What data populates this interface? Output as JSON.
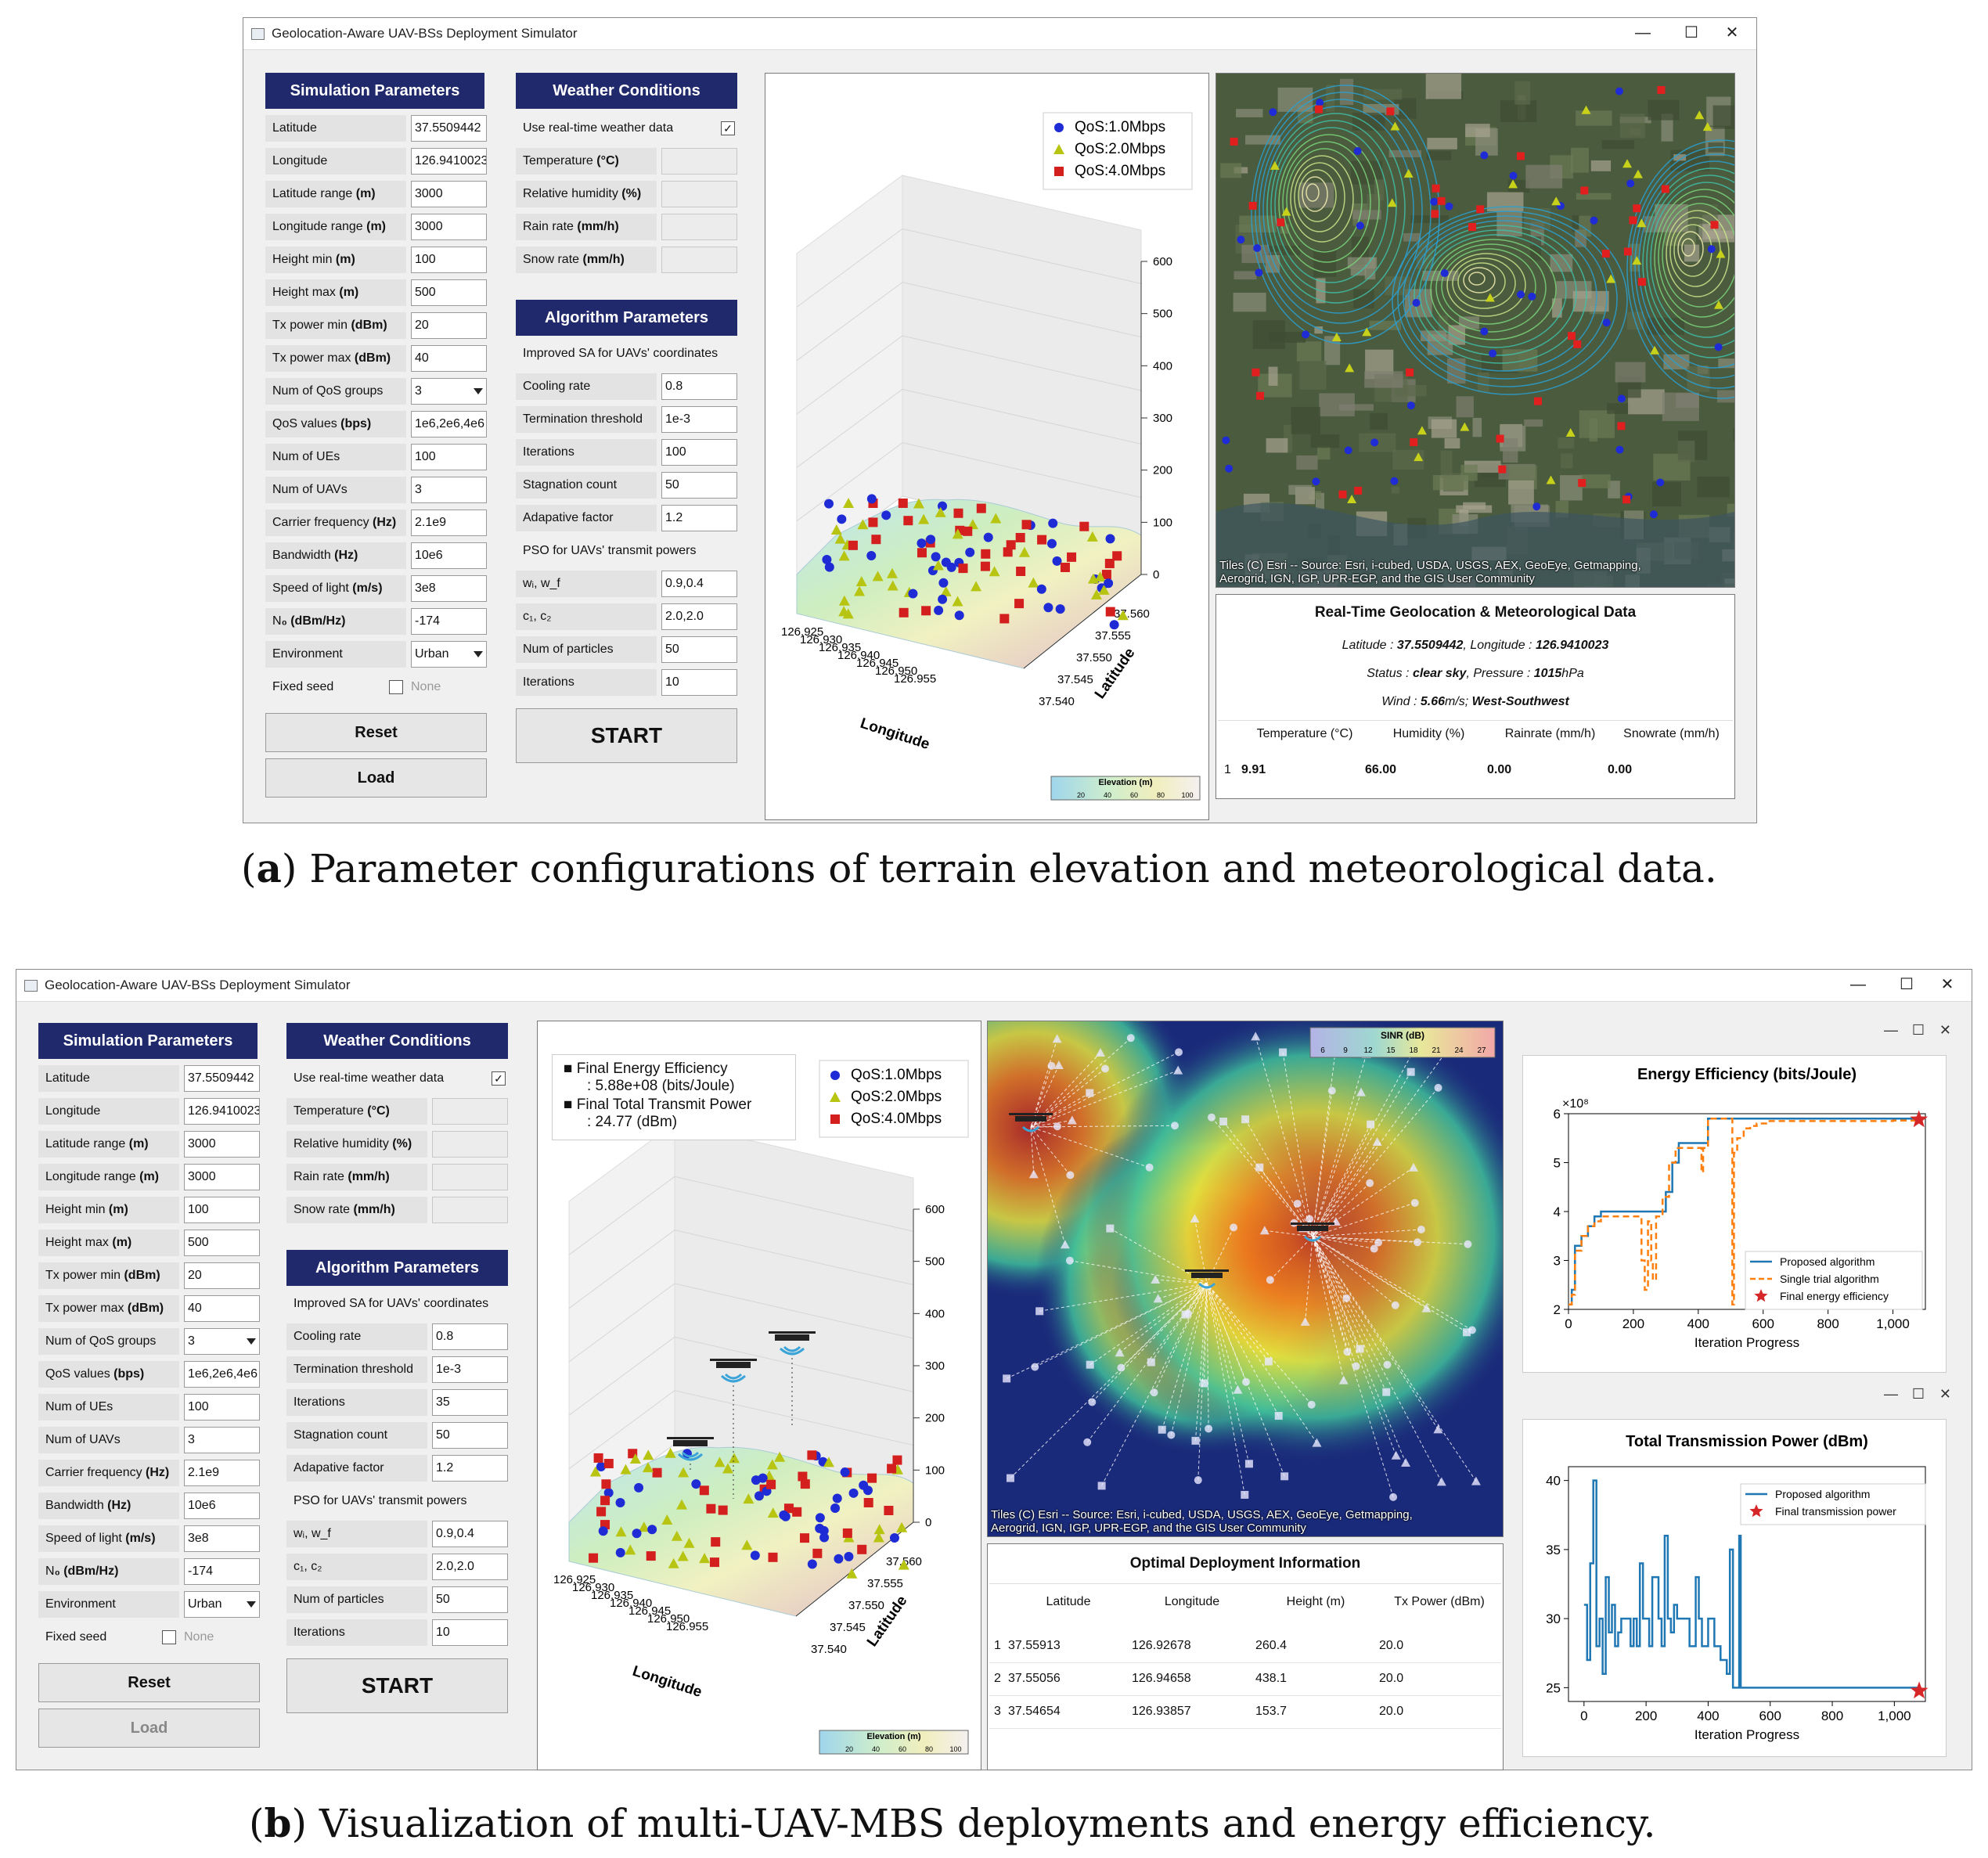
{
  "window_title": "Geolocation-Aware UAV-BSs Deployment Simulator",
  "sim_params": {
    "header": "Simulation Parameters",
    "rows": [
      {
        "label": "Latitude",
        "unit": "",
        "value": "37.5509442"
      },
      {
        "label": "Longitude",
        "unit": "",
        "value": "126.9410023"
      },
      {
        "label": "Latitude range ",
        "unit": "(m)",
        "value": "3000"
      },
      {
        "label": "Longitude range ",
        "unit": "(m)",
        "value": "3000"
      },
      {
        "label": "Height min ",
        "unit": "(m)",
        "value": "100"
      },
      {
        "label": "Height max ",
        "unit": "(m)",
        "value": "500"
      },
      {
        "label": "Tx power min ",
        "unit": "(dBm)",
        "value": "20"
      },
      {
        "label": "Tx power max ",
        "unit": "(dBm)",
        "value": "40"
      },
      {
        "label": "Num of QoS groups",
        "unit": "",
        "value": "3"
      },
      {
        "label": "QoS values ",
        "unit": "(bps)",
        "value": "1e6,2e6,4e6"
      },
      {
        "label": "Num of UEs",
        "unit": "",
        "value": "100"
      },
      {
        "label": "Num of UAVs",
        "unit": "",
        "value": "3"
      },
      {
        "label": "Carrier frequency ",
        "unit": "(Hz)",
        "value": "2.1e9"
      },
      {
        "label": "Bandwidth ",
        "unit": "(Hz)",
        "value": "10e6"
      },
      {
        "label": "Speed of light ",
        "unit": "(m/s)",
        "value": "3e8"
      },
      {
        "label": "N",
        "unit": "₀ (dBm/Hz)",
        "value": "-174"
      },
      {
        "label": "Environment",
        "unit": "",
        "value": "Urban"
      }
    ],
    "fixed_seed_label": "Fixed seed",
    "fixed_seed_value": "None",
    "reset": "Reset",
    "load": "Load"
  },
  "weather": {
    "header": "Weather Conditions",
    "realtime_label": "Use real-time weather data",
    "rows": [
      {
        "label": "Temperature ",
        "unit": "(°C)"
      },
      {
        "label": "Relative humidity ",
        "unit": "(%)"
      },
      {
        "label": "Rain rate ",
        "unit": "(mm/h)"
      },
      {
        "label": "Snow rate ",
        "unit": "(mm/h)"
      }
    ]
  },
  "algo": {
    "header": "Algorithm Parameters",
    "sa_label": "Improved SA for UAVs' coordinates",
    "sa_rows_a": [
      {
        "label": "Cooling rate",
        "value": "0.8"
      },
      {
        "label": "Termination threshold",
        "value": "1e-3"
      },
      {
        "label": "Iterations",
        "value": "100"
      },
      {
        "label": "Stagnation count",
        "value": "50"
      },
      {
        "label": "Adapative factor",
        "value": "1.2"
      }
    ],
    "sa_rows_b": [
      {
        "label": "Cooling rate",
        "value": "0.8"
      },
      {
        "label": "Termination threshold",
        "value": "1e-3"
      },
      {
        "label": "Iterations",
        "value": "35"
      },
      {
        "label": "Stagnation count",
        "value": "50"
      },
      {
        "label": "Adapative factor",
        "value": "1.2"
      }
    ],
    "pso_label": "PSO for UAVs' transmit powers",
    "pso_rows": [
      {
        "label": "wᵢ, w_f",
        "value": "0.9,0.4"
      },
      {
        "label": "c₁, c₂",
        "value": "2.0,2.0"
      },
      {
        "label": "Num of particles",
        "value": "50"
      },
      {
        "label": "Iterations",
        "value": "10"
      }
    ],
    "start": "START"
  },
  "plot3d": {
    "legend": [
      "QoS:1.0Mbps",
      "QoS:2.0Mbps",
      "QoS:4.0Mbps"
    ],
    "z_ticks": [
      "600",
      "500",
      "400",
      "300",
      "200",
      "100",
      "0"
    ],
    "lon_ticks": [
      "126.925",
      "126.930",
      "126.935",
      "126.940",
      "126.945",
      "126.950",
      "126.955"
    ],
    "lat_ticks": [
      "37.560",
      "37.555",
      "37.550",
      "37.545",
      "37.540"
    ],
    "xlabel": "Longitude",
    "ylabel": "Latitude",
    "cbar_title": "Elevation (m)",
    "cbar_ticks": [
      "20",
      "40",
      "60",
      "80",
      "100"
    ]
  },
  "result_box": {
    "line1": "Final Energy Efficiency",
    "line1b": ": 5.88e+08 (bits/Joule)",
    "line2": "Final Total Transmit Power",
    "line2b": ": 24.77 (dBm)"
  },
  "map_attribution": {
    "line1": "Tiles (C) Esri -- Source: Esri, i-cubed, USDA, USGS, AEX, GeoEye, Getmapping,",
    "line2": "Aerogrid, IGN, IGP, UPR-EGP, and the GIS User Community"
  },
  "sinr": {
    "title": "SINR (dB)",
    "ticks": [
      "6",
      "9",
      "12",
      "15",
      "18",
      "21",
      "24",
      "27"
    ]
  },
  "geo_info": {
    "title": "Real-Time Geolocation & Meteorological Data",
    "lat_label": "Latitude : ",
    "lat_value": "37.5509442",
    "lon_label": ", Longitude : ",
    "lon_value": "126.9410023",
    "status_label": "Status : ",
    "status_value": "clear sky",
    "pressure_label": ", Pressure : ",
    "pressure_value": "1015",
    "pressure_unit": "hPa",
    "wind_label": "Wind : ",
    "wind_value": "5.66",
    "wind_unit": "m/s; ",
    "wind_dir": "West-Southwest",
    "headers": [
      "Temperature (°C)",
      "Humidity (%)",
      "Rainrate (mm/h)",
      "Snowrate (mm/h)"
    ],
    "row_index": "1",
    "values": [
      "9.91",
      "66.00",
      "0.00",
      "0.00"
    ]
  },
  "deploy": {
    "title": "Optimal Deployment Information",
    "headers": [
      "Latitude",
      "Longitude",
      "Height (m)",
      "Tx Power (dBm)"
    ],
    "rows": [
      {
        "idx": "1",
        "lat": "37.55913",
        "lon": "126.92678",
        "h": "260.4",
        "p": "20.0"
      },
      {
        "idx": "2",
        "lat": "37.55056",
        "lon": "126.94658",
        "h": "438.1",
        "p": "20.0"
      },
      {
        "idx": "3",
        "lat": "37.54654",
        "lon": "126.93857",
        "h": "153.7",
        "p": "20.0"
      }
    ]
  },
  "captions": {
    "a_label": "a",
    "a_text": ") Parameter configurations of terrain elevation and meteorological data.",
    "b_label": "b",
    "b_text": ") Visualization of multi-UAV-MBS deployments and energy efficiency."
  },
  "chart_data": [
    {
      "type": "line",
      "title": "Energy Efficiency (bits/Joule)",
      "xlabel": "Iteration Progress",
      "ylabel": "",
      "y_multiplier": "×10⁸",
      "xlim": [
        0,
        1100
      ],
      "ylim": [
        2,
        6
      ],
      "x_ticks": [
        "0",
        "200",
        "400",
        "600",
        "800",
        "1,000"
      ],
      "y_ticks": [
        "6",
        "5",
        "4",
        "3",
        "2"
      ],
      "legend": [
        "Proposed algorithm",
        "Single trial algorithm",
        "Final energy efficiency"
      ],
      "series": [
        {
          "name": "Proposed algorithm",
          "color": "#1f77b4",
          "x": [
            0,
            10,
            20,
            40,
            60,
            80,
            100,
            130,
            160,
            200,
            240,
            280,
            300,
            320,
            340,
            400,
            430,
            500,
            1080
          ],
          "y": [
            2.1,
            2.4,
            3.3,
            3.5,
            3.7,
            3.9,
            4.0,
            4.0,
            4.0,
            4.0,
            4.0,
            4.0,
            4.4,
            5.0,
            5.4,
            5.4,
            5.9,
            5.9,
            5.9
          ]
        },
        {
          "name": "Single trial algorithm",
          "color": "#ff7f0e",
          "x": [
            0,
            10,
            20,
            40,
            60,
            80,
            100,
            140,
            180,
            215,
            225,
            235,
            245,
            255,
            260,
            270,
            290,
            310,
            330,
            360,
            400,
            410,
            415,
            430,
            460,
            490,
            500,
            505,
            510,
            520,
            540,
            560,
            580,
            620,
            700,
            800,
            900,
            1000,
            1080
          ],
          "y": [
            2.1,
            2.3,
            3.2,
            3.5,
            3.7,
            3.8,
            3.9,
            3.9,
            3.9,
            3.9,
            3.0,
            2.4,
            3.8,
            3.0,
            2.6,
            3.9,
            4.3,
            5.0,
            5.3,
            5.3,
            5.3,
            4.8,
            5.3,
            5.9,
            5.9,
            5.9,
            5.9,
            2.1,
            5.2,
            5.5,
            5.7,
            5.75,
            5.8,
            5.85,
            5.85,
            5.85,
            5.85,
            5.86,
            5.86
          ]
        },
        {
          "name": "Final energy efficiency",
          "color": "#d62728",
          "x": [
            1080
          ],
          "y": [
            5.88
          ]
        }
      ]
    },
    {
      "type": "line",
      "title": "Total Transmission Power (dBm)",
      "xlabel": "Iteration Progress",
      "ylabel": "",
      "xlim": [
        -50,
        1100
      ],
      "ylim": [
        24,
        41
      ],
      "x_ticks": [
        "0",
        "200",
        "400",
        "600",
        "800",
        "1,000"
      ],
      "y_ticks": [
        "40",
        "35",
        "30",
        "25"
      ],
      "legend": [
        "Proposed algorithm",
        "Final transmission power"
      ],
      "series": [
        {
          "name": "Proposed algorithm",
          "color": "#1f77b4",
          "x": [
            0,
            10,
            20,
            30,
            40,
            50,
            60,
            70,
            80,
            90,
            100,
            110,
            120,
            140,
            150,
            160,
            170,
            180,
            190,
            200,
            210,
            220,
            240,
            250,
            260,
            270,
            280,
            290,
            300,
            320,
            340,
            360,
            370,
            380,
            400,
            420,
            440,
            460,
            470,
            480,
            500,
            505,
            510,
            520,
            600,
            700,
            800,
            900,
            1000,
            1080
          ],
          "y": [
            31,
            27,
            34,
            40,
            28,
            30,
            26,
            33,
            29,
            31,
            28,
            29,
            30,
            30,
            28,
            30,
            28,
            34,
            30,
            30,
            28,
            33,
            30,
            28,
            36,
            30,
            29,
            31,
            30,
            30,
            28,
            33,
            30,
            28,
            30,
            28,
            27,
            26,
            35,
            25,
            36,
            25,
            25,
            25,
            25,
            25,
            25,
            25,
            25,
            24.77
          ]
        },
        {
          "name": "Final transmission power",
          "color": "#d62728",
          "x": [
            1080
          ],
          "y": [
            24.77
          ]
        }
      ]
    }
  ]
}
